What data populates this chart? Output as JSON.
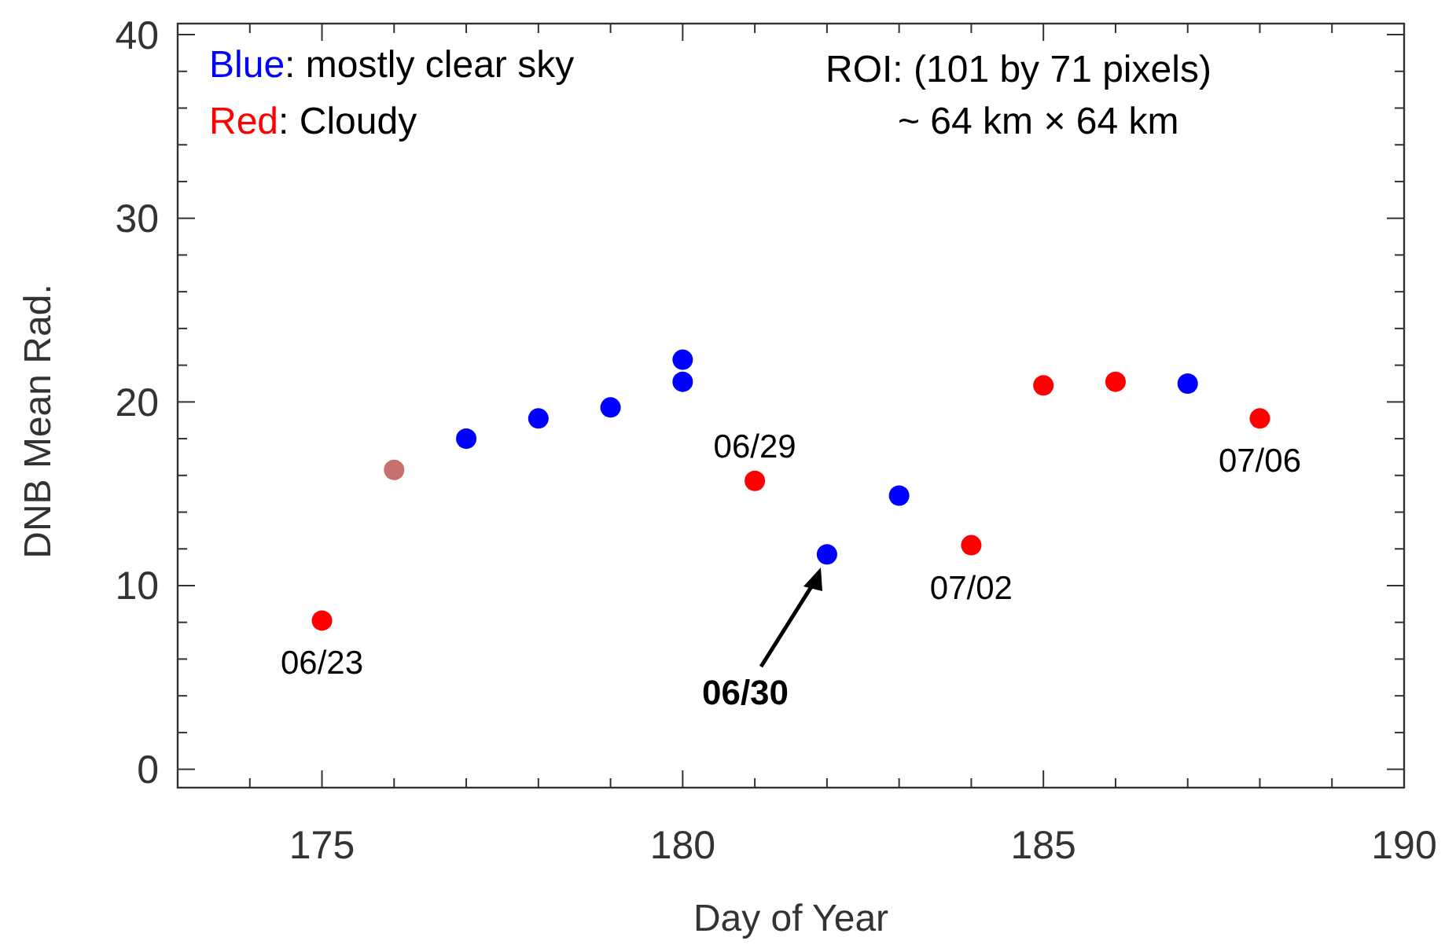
{
  "chart_data": {
    "type": "scatter",
    "xlabel": "Day of Year",
    "ylabel": "DNB Mean Rad.",
    "xlim": [
      173,
      190
    ],
    "ylim": [
      -1,
      40.6
    ],
    "xticks": [
      {
        "value": 173,
        "label": null
      },
      {
        "value": 174,
        "label": null
      },
      175,
      {
        "value": 176,
        "label": null
      },
      {
        "value": 177,
        "label": null
      },
      {
        "value": 178,
        "label": null
      },
      {
        "value": 179,
        "label": null
      },
      180,
      {
        "value": 181,
        "label": null
      },
      {
        "value": 182,
        "label": null
      },
      {
        "value": 183,
        "label": null
      },
      {
        "value": 184,
        "label": null
      },
      185,
      {
        "value": 186,
        "label": null
      },
      {
        "value": 187,
        "label": null
      },
      {
        "value": 188,
        "label": null
      },
      {
        "value": 189,
        "label": null
      },
      190
    ],
    "yticks": [
      0,
      {
        "value": 2,
        "label": null
      },
      {
        "value": 4,
        "label": null
      },
      {
        "value": 6,
        "label": null
      },
      {
        "value": 8,
        "label": null
      },
      10,
      {
        "value": 12,
        "label": null
      },
      {
        "value": 14,
        "label": null
      },
      {
        "value": 16,
        "label": null
      },
      {
        "value": 18,
        "label": null
      },
      20,
      {
        "value": 22,
        "label": null
      },
      {
        "value": 24,
        "label": null
      },
      {
        "value": 26,
        "label": null
      },
      {
        "value": 28,
        "label": null
      },
      30,
      {
        "value": 32,
        "label": null
      },
      {
        "value": 34,
        "label": null
      },
      {
        "value": 36,
        "label": null
      },
      {
        "value": 38,
        "label": null
      },
      40
    ],
    "grid": false,
    "marker": "circle",
    "series": [
      {
        "color": "#0000ff",
        "x": [
          177,
          178,
          179,
          180,
          180,
          182,
          183,
          187
        ],
        "values": [
          18.0,
          19.1,
          19.7,
          22.3,
          21.1,
          11.7,
          14.9,
          21.0
        ]
      },
      {
        "color": "#ff0000",
        "x": [
          175,
          181,
          184,
          185,
          186,
          188
        ],
        "values": [
          8.1,
          15.7,
          12.2,
          20.9,
          21.1,
          19.1
        ]
      },
      {
        "color": "#c87070",
        "x": [
          176
        ],
        "values": [
          16.3
        ]
      }
    ],
    "annotations": [
      "Blue: mostly clear sky",
      "Red: Cloudy",
      "ROI: (101 by 71 pixels)",
      "~ 64 km × 64 km",
      {
        "text": "06/23",
        "x": 175,
        "y": 8.1
      },
      {
        "text": "06/29",
        "x": 181,
        "y": 15.7
      },
      {
        "text": "07/02",
        "x": 184,
        "y": 12.2
      },
      {
        "text": "07/06",
        "x": 188,
        "y": 19.1
      },
      "06/30"
    ]
  }
}
